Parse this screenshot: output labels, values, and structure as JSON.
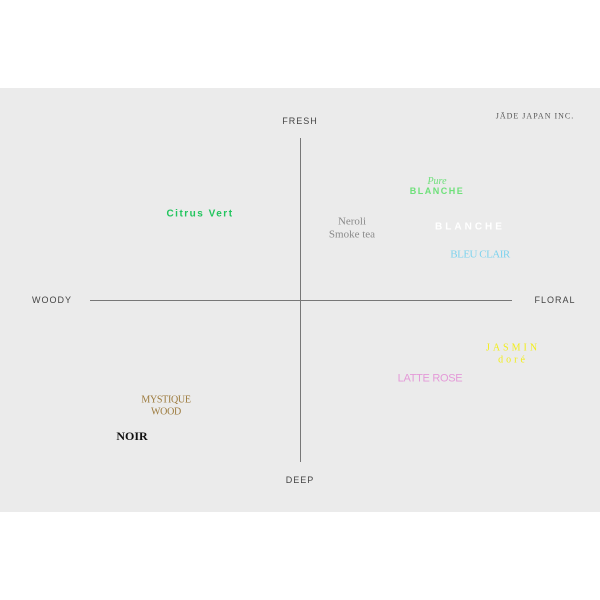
{
  "brand": "JĀDE JAPAN INC.",
  "axes": {
    "top": "FRESH",
    "bottom": "DEEP",
    "left": "WOODY",
    "right": "FLORAL"
  },
  "items": [
    {
      "name": "Citrus Vert",
      "color": "#22c55e"
    },
    {
      "name": "Neroli",
      "name2": "Smoke tea",
      "color": "#8a8a8a"
    },
    {
      "script": "Pure",
      "name": "BLANCHE",
      "color": "#6ee07a"
    },
    {
      "name": "BLANCHE",
      "color": "#ffffff"
    },
    {
      "name": "BLEU CLAIR",
      "color": "#7fd3ee"
    },
    {
      "name": "JASMIN",
      "name2": "doré",
      "color": "#f2ee1a"
    },
    {
      "name": "LATTE ROSE",
      "color": "#e49ad8"
    },
    {
      "name": "MYSTIQUE",
      "name2": "WOOD",
      "color": "#9c7a3c"
    },
    {
      "name": "NOIR",
      "color": "#111111"
    }
  ]
}
